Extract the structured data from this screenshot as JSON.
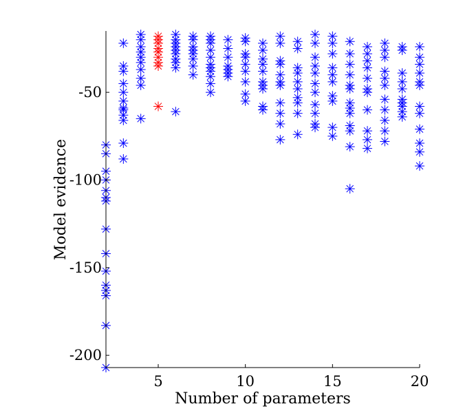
{
  "chart_data": {
    "type": "scatter",
    "title": "",
    "xlabel": "Number of parameters",
    "ylabel": "Model evidence",
    "xlim": [
      2,
      20
    ],
    "ylim": [
      -207,
      -15
    ],
    "xticks": [
      5,
      10,
      15,
      20
    ],
    "yticks": [
      -200,
      -150,
      -100,
      -50
    ],
    "xtick_labels": [
      "5",
      "10",
      "15",
      "20"
    ],
    "ytick_labels": [
      "-200",
      "-150",
      "-100",
      "-50"
    ],
    "grid": false,
    "legend": "none",
    "marker": "asterisk",
    "series": [
      {
        "color": "#0000ff",
        "points": [
          [
            2,
            -80
          ],
          [
            2,
            -85
          ],
          [
            2,
            -95
          ],
          [
            2,
            -100
          ],
          [
            2,
            -106
          ],
          [
            2,
            -110
          ],
          [
            2,
            -112
          ],
          [
            2,
            -128
          ],
          [
            2,
            -142
          ],
          [
            2,
            -152
          ],
          [
            2,
            -160
          ],
          [
            2,
            -163
          ],
          [
            2,
            -166
          ],
          [
            2,
            -183
          ],
          [
            2,
            -207
          ],
          [
            3,
            -22
          ],
          [
            3,
            -35
          ],
          [
            3,
            -38
          ],
          [
            3,
            -45
          ],
          [
            3,
            -50
          ],
          [
            3,
            -55
          ],
          [
            3,
            -59
          ],
          [
            3,
            -60
          ],
          [
            3,
            -63
          ],
          [
            3,
            -66
          ],
          [
            3,
            -79
          ],
          [
            3,
            -88
          ],
          [
            4,
            -17
          ],
          [
            4,
            -20
          ],
          [
            4,
            -24
          ],
          [
            4,
            -27
          ],
          [
            4,
            -30
          ],
          [
            4,
            -33
          ],
          [
            4,
            -37
          ],
          [
            4,
            -42
          ],
          [
            4,
            -46
          ],
          [
            4,
            -65
          ],
          [
            6,
            -17
          ],
          [
            6,
            -20
          ],
          [
            6,
            -22
          ],
          [
            6,
            -24
          ],
          [
            6,
            -26
          ],
          [
            6,
            -28
          ],
          [
            6,
            -31
          ],
          [
            6,
            -33
          ],
          [
            6,
            -36
          ],
          [
            6,
            -61
          ],
          [
            7,
            -18
          ],
          [
            7,
            -20
          ],
          [
            7,
            -24
          ],
          [
            7,
            -26
          ],
          [
            7,
            -28
          ],
          [
            7,
            -31
          ],
          [
            7,
            -35
          ],
          [
            7,
            -40
          ],
          [
            8,
            -18
          ],
          [
            8,
            -20
          ],
          [
            8,
            -22
          ],
          [
            8,
            -26
          ],
          [
            8,
            -30
          ],
          [
            8,
            -34
          ],
          [
            8,
            -36
          ],
          [
            8,
            -38
          ],
          [
            8,
            -41
          ],
          [
            8,
            -45
          ],
          [
            8,
            -50
          ],
          [
            9,
            -20
          ],
          [
            9,
            -25
          ],
          [
            9,
            -30
          ],
          [
            9,
            -35
          ],
          [
            9,
            -37
          ],
          [
            9,
            -39
          ],
          [
            9,
            -41
          ],
          [
            10,
            -19
          ],
          [
            10,
            -21
          ],
          [
            10,
            -28
          ],
          [
            10,
            -30
          ],
          [
            10,
            -34
          ],
          [
            10,
            -38
          ],
          [
            10,
            -44
          ],
          [
            10,
            -51
          ],
          [
            10,
            -55
          ],
          [
            11,
            -22
          ],
          [
            11,
            -26
          ],
          [
            11,
            -31
          ],
          [
            11,
            -34
          ],
          [
            11,
            -38
          ],
          [
            11,
            -44
          ],
          [
            11,
            -46
          ],
          [
            11,
            -48
          ],
          [
            11,
            -58
          ],
          [
            11,
            -60
          ],
          [
            12,
            -18
          ],
          [
            12,
            -22
          ],
          [
            12,
            -32
          ],
          [
            12,
            -34
          ],
          [
            12,
            -40
          ],
          [
            12,
            -44
          ],
          [
            12,
            -46
          ],
          [
            12,
            -56
          ],
          [
            12,
            -62
          ],
          [
            12,
            -68
          ],
          [
            12,
            -77
          ],
          [
            13,
            -21
          ],
          [
            13,
            -25
          ],
          [
            13,
            -36
          ],
          [
            13,
            -39
          ],
          [
            13,
            -44
          ],
          [
            13,
            -48
          ],
          [
            13,
            -53
          ],
          [
            13,
            -56
          ],
          [
            13,
            -62
          ],
          [
            13,
            -74
          ],
          [
            14,
            -17
          ],
          [
            14,
            -22
          ],
          [
            14,
            -30
          ],
          [
            14,
            -35
          ],
          [
            14,
            -39
          ],
          [
            14,
            -45
          ],
          [
            14,
            -50
          ],
          [
            14,
            -57
          ],
          [
            14,
            -62
          ],
          [
            14,
            -68
          ],
          [
            14,
            -70
          ],
          [
            15,
            -18
          ],
          [
            15,
            -22
          ],
          [
            15,
            -28
          ],
          [
            15,
            -36
          ],
          [
            15,
            -40
          ],
          [
            15,
            -44
          ],
          [
            15,
            -52
          ],
          [
            15,
            -55
          ],
          [
            15,
            -70
          ],
          [
            15,
            -75
          ],
          [
            16,
            -21
          ],
          [
            16,
            -28
          ],
          [
            16,
            -34
          ],
          [
            16,
            -40
          ],
          [
            16,
            -46
          ],
          [
            16,
            -48
          ],
          [
            16,
            -56
          ],
          [
            16,
            -59
          ],
          [
            16,
            -62
          ],
          [
            16,
            -69
          ],
          [
            16,
            -72
          ],
          [
            16,
            -81
          ],
          [
            16,
            -105
          ],
          [
            17,
            -24
          ],
          [
            17,
            -28
          ],
          [
            17,
            -32
          ],
          [
            17,
            -36
          ],
          [
            17,
            -42
          ],
          [
            17,
            -48
          ],
          [
            17,
            -50
          ],
          [
            17,
            -60
          ],
          [
            17,
            -72
          ],
          [
            17,
            -77
          ],
          [
            17,
            -82
          ],
          [
            18,
            -22
          ],
          [
            18,
            -26
          ],
          [
            18,
            -30
          ],
          [
            18,
            -38
          ],
          [
            18,
            -42
          ],
          [
            18,
            -46
          ],
          [
            18,
            -54
          ],
          [
            18,
            -60
          ],
          [
            18,
            -66
          ],
          [
            18,
            -72
          ],
          [
            18,
            -78
          ],
          [
            19,
            -24
          ],
          [
            19,
            -26
          ],
          [
            19,
            -39
          ],
          [
            19,
            -44
          ],
          [
            19,
            -48
          ],
          [
            19,
            -54
          ],
          [
            19,
            -56
          ],
          [
            19,
            -58
          ],
          [
            19,
            -61
          ],
          [
            19,
            -64
          ],
          [
            20,
            -24
          ],
          [
            20,
            -30
          ],
          [
            20,
            -34
          ],
          [
            20,
            -39
          ],
          [
            20,
            -44
          ],
          [
            20,
            -46
          ],
          [
            20,
            -58
          ],
          [
            20,
            -62
          ],
          [
            20,
            -71
          ],
          [
            20,
            -79
          ],
          [
            20,
            -84
          ],
          [
            20,
            -92
          ]
        ]
      },
      {
        "color": "#ff0000",
        "points": [
          [
            5,
            -18
          ],
          [
            5,
            -20
          ],
          [
            5,
            -22
          ],
          [
            5,
            -25
          ],
          [
            5,
            -27
          ],
          [
            5,
            -30
          ],
          [
            5,
            -33
          ],
          [
            5,
            -35
          ],
          [
            5,
            -58
          ]
        ]
      }
    ]
  }
}
